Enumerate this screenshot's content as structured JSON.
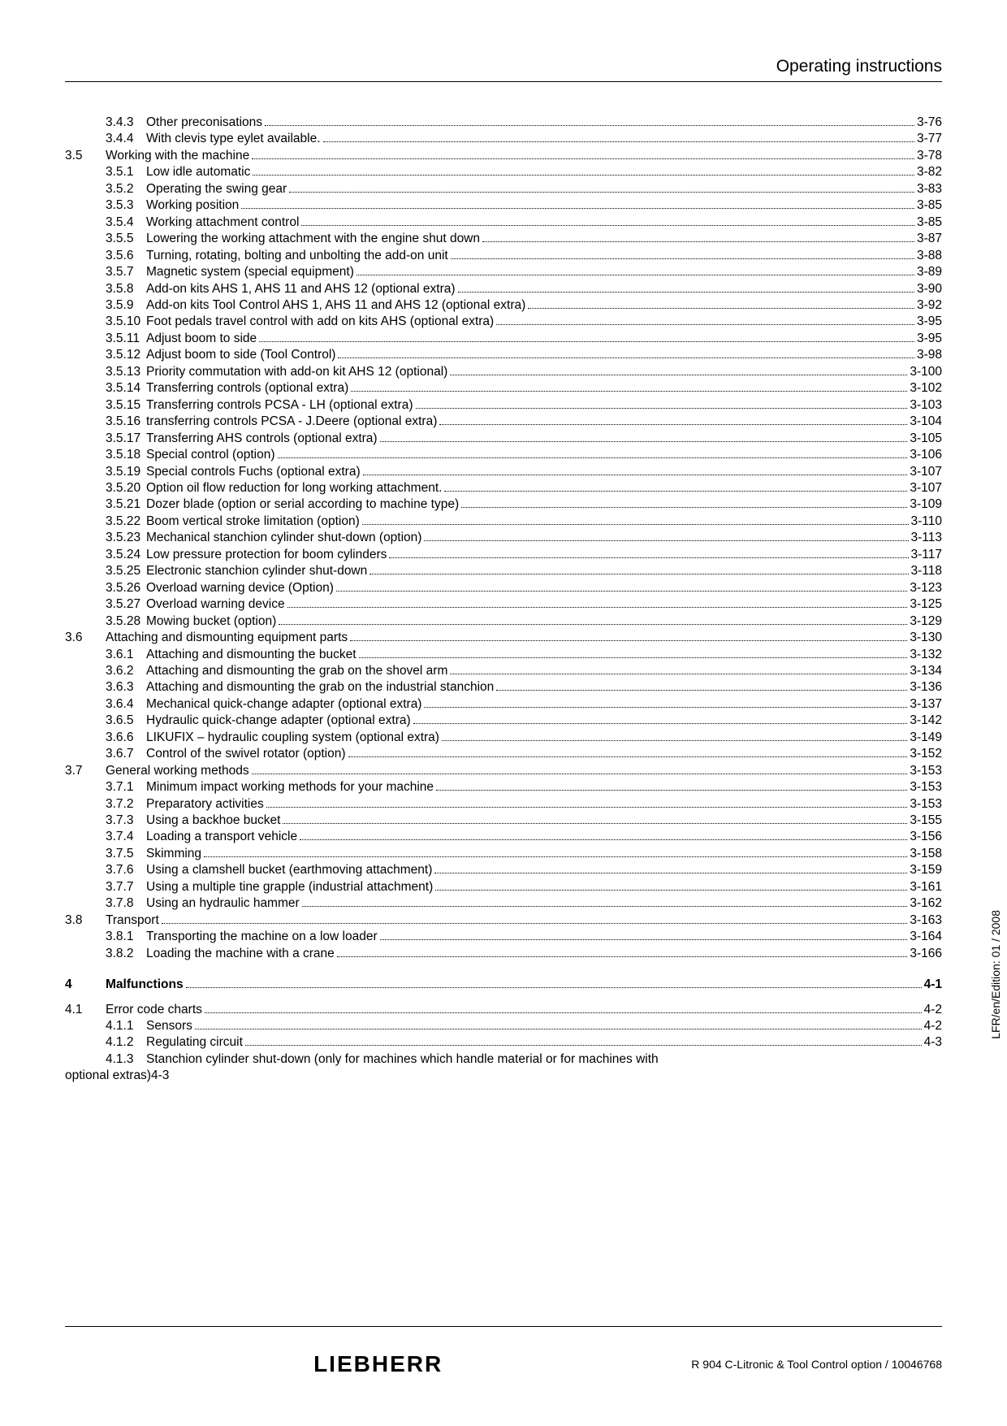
{
  "header": {
    "title": "Operating instructions"
  },
  "side_text": "LFR/en/Edition: 01 / 2008",
  "footer": {
    "brand": "LIEBHERR",
    "doc_info": "R 904 C-Litronic & Tool Control option / 10046768"
  },
  "toc": [
    {
      "type": "sub",
      "sec": "",
      "num": "3.4.3",
      "label": "Other preconisations",
      "page": "3-76"
    },
    {
      "type": "sub",
      "sec": "",
      "num": "3.4.4",
      "label": "With clevis type eylet available.",
      "page": "3-77"
    },
    {
      "type": "sec",
      "sec": "3.5",
      "num": "",
      "label": "Working with the machine",
      "page": "3-78"
    },
    {
      "type": "sub",
      "sec": "",
      "num": "3.5.1",
      "label": "Low idle automatic",
      "page": "3-82"
    },
    {
      "type": "sub",
      "sec": "",
      "num": "3.5.2",
      "label": "Operating the swing gear",
      "page": "3-83"
    },
    {
      "type": "sub",
      "sec": "",
      "num": "3.5.3",
      "label": "Working position",
      "page": "3-85"
    },
    {
      "type": "sub",
      "sec": "",
      "num": "3.5.4",
      "label": "Working attachment control",
      "page": "3-85"
    },
    {
      "type": "sub",
      "sec": "",
      "num": "3.5.5",
      "label": "Lowering the working attachment with the engine shut down",
      "page": "3-87"
    },
    {
      "type": "sub",
      "sec": "",
      "num": "3.5.6",
      "label": "Turning, rotating, bolting and unbolting the add-on unit",
      "page": "3-88"
    },
    {
      "type": "sub",
      "sec": "",
      "num": "3.5.7",
      "label": "Magnetic system (special equipment)",
      "page": "3-89"
    },
    {
      "type": "sub",
      "sec": "",
      "num": "3.5.8",
      "label": "Add-on kits AHS 1, AHS 11 and AHS 12 (optional extra)",
      "page": "3-90"
    },
    {
      "type": "sub",
      "sec": "",
      "num": "3.5.9",
      "label": "Add-on kits Tool Control AHS 1, AHS 11 and AHS 12 (optional extra)",
      "page": "3-92"
    },
    {
      "type": "sub",
      "sec": "",
      "num": "3.5.10",
      "label": "Foot pedals travel control with add on kits AHS (optional extra)",
      "page": "3-95"
    },
    {
      "type": "sub",
      "sec": "",
      "num": "3.5.11",
      "label": "Adjust boom to side",
      "page": "3-95"
    },
    {
      "type": "sub",
      "sec": "",
      "num": "3.5.12",
      "label": "Adjust boom to side (Tool Control)",
      "page": "3-98"
    },
    {
      "type": "sub",
      "sec": "",
      "num": "3.5.13",
      "label": "Priority commutation with add-on kit AHS 12 (optional)",
      "page": "3-100"
    },
    {
      "type": "sub",
      "sec": "",
      "num": "3.5.14",
      "label": "Transferring controls (optional extra)",
      "page": "3-102"
    },
    {
      "type": "sub",
      "sec": "",
      "num": "3.5.15",
      "label": "Transferring controls PCSA - LH (optional extra)",
      "page": "3-103"
    },
    {
      "type": "sub",
      "sec": "",
      "num": "3.5.16",
      "label": "transferring controls PCSA - J.Deere (optional extra)",
      "page": "3-104"
    },
    {
      "type": "sub",
      "sec": "",
      "num": "3.5.17",
      "label": "Transferring AHS controls (optional extra)",
      "page": "3-105"
    },
    {
      "type": "sub",
      "sec": "",
      "num": "3.5.18",
      "label": "Special control (option)",
      "page": "3-106"
    },
    {
      "type": "sub",
      "sec": "",
      "num": "3.5.19",
      "label": "Special controls Fuchs (optional extra)",
      "page": "3-107"
    },
    {
      "type": "sub",
      "sec": "",
      "num": "3.5.20",
      "label": "Option oil flow reduction for long working attachment.",
      "page": "3-107"
    },
    {
      "type": "sub",
      "sec": "",
      "num": "3.5.21",
      "label": "Dozer blade (option or serial according to machine type)",
      "page": "3-109"
    },
    {
      "type": "sub",
      "sec": "",
      "num": "3.5.22",
      "label": "Boom vertical stroke limitation (option)",
      "page": "3-110"
    },
    {
      "type": "sub",
      "sec": "",
      "num": "3.5.23",
      "label": "Mechanical stanchion cylinder shut-down (option)",
      "page": "3-113"
    },
    {
      "type": "sub",
      "sec": "",
      "num": "3.5.24",
      "label": "Low pressure protection for boom cylinders",
      "page": "3-117"
    },
    {
      "type": "sub",
      "sec": "",
      "num": "3.5.25",
      "label": "Electronic stanchion cylinder shut-down",
      "page": "3-118"
    },
    {
      "type": "sub",
      "sec": "",
      "num": "3.5.26",
      "label": "Overload warning device (Option)",
      "page": "3-123"
    },
    {
      "type": "sub",
      "sec": "",
      "num": "3.5.27",
      "label": "Overload warning device",
      "page": "3-125"
    },
    {
      "type": "sub",
      "sec": "",
      "num": "3.5.28",
      "label": "Mowing bucket (option)",
      "page": "3-129"
    },
    {
      "type": "sec",
      "sec": "3.6",
      "num": "",
      "label": "Attaching and dismounting equipment parts",
      "page": "3-130"
    },
    {
      "type": "sub",
      "sec": "",
      "num": "3.6.1",
      "label": "Attaching and dismounting the bucket",
      "page": "3-132"
    },
    {
      "type": "sub",
      "sec": "",
      "num": "3.6.2",
      "label": "Attaching and dismounting the grab on the shovel arm",
      "page": "3-134"
    },
    {
      "type": "sub",
      "sec": "",
      "num": "3.6.3",
      "label": "Attaching and dismounting the grab on the industrial stanchion",
      "page": "3-136"
    },
    {
      "type": "sub",
      "sec": "",
      "num": "3.6.4",
      "label": "Mechanical quick-change adapter (optional extra)",
      "page": "3-137"
    },
    {
      "type": "sub",
      "sec": "",
      "num": "3.6.5",
      "label": "Hydraulic quick-change adapter (optional extra)",
      "page": "3-142"
    },
    {
      "type": "sub",
      "sec": "",
      "num": "3.6.6",
      "label": "LIKUFIX – hydraulic coupling system (optional extra)",
      "page": "3-149"
    },
    {
      "type": "sub",
      "sec": "",
      "num": "3.6.7",
      "label": "Control of the swivel rotator (option)",
      "page": "3-152"
    },
    {
      "type": "sec",
      "sec": "3.7",
      "num": "",
      "label": "General working methods",
      "page": "3-153"
    },
    {
      "type": "sub",
      "sec": "",
      "num": "3.7.1",
      "label": "Minimum impact working methods for your machine",
      "page": "3-153"
    },
    {
      "type": "sub",
      "sec": "",
      "num": "3.7.2",
      "label": "Preparatory activities",
      "page": "3-153"
    },
    {
      "type": "sub",
      "sec": "",
      "num": "3.7.3",
      "label": "Using a backhoe bucket",
      "page": "3-155"
    },
    {
      "type": "sub",
      "sec": "",
      "num": "3.7.4",
      "label": "Loading a transport vehicle",
      "page": "3-156"
    },
    {
      "type": "sub",
      "sec": "",
      "num": "3.7.5",
      "label": "Skimming",
      "page": "3-158"
    },
    {
      "type": "sub",
      "sec": "",
      "num": "3.7.6",
      "label": "Using a clamshell bucket (earthmoving attachment)",
      "page": "3-159"
    },
    {
      "type": "sub",
      "sec": "",
      "num": "3.7.7",
      "label": "Using a multiple tine grapple (industrial attachment)",
      "page": "3-161"
    },
    {
      "type": "sub",
      "sec": "",
      "num": "3.7.8",
      "label": "Using an hydraulic hammer",
      "page": "3-162"
    },
    {
      "type": "sec",
      "sec": "3.8",
      "num": "",
      "label": "Transport",
      "page": "3-163"
    },
    {
      "type": "sub",
      "sec": "",
      "num": "3.8.1",
      "label": "Transporting the machine on a low loader",
      "page": "3-164"
    },
    {
      "type": "sub",
      "sec": "",
      "num": "3.8.2",
      "label": "Loading the machine with a crane",
      "page": "3-166"
    },
    {
      "type": "chapter",
      "ch": "4",
      "label": "Malfunctions",
      "page": "4-1"
    },
    {
      "type": "sec",
      "sec": "4.1",
      "num": "",
      "label": "Error code charts",
      "page": "4-2"
    },
    {
      "type": "sub",
      "sec": "",
      "num": "4.1.1",
      "label": "Sensors",
      "page": "4-2"
    },
    {
      "type": "sub",
      "sec": "",
      "num": "4.1.2",
      "label": "Regulating circuit",
      "page": "4-3"
    },
    {
      "type": "sub-nopage",
      "sec": "",
      "num": "4.1.3",
      "label": "Stanchion cylinder shut-down (only for machines which handle material or for machines with"
    },
    {
      "type": "wrap",
      "label": "optional extras)4-3"
    }
  ]
}
